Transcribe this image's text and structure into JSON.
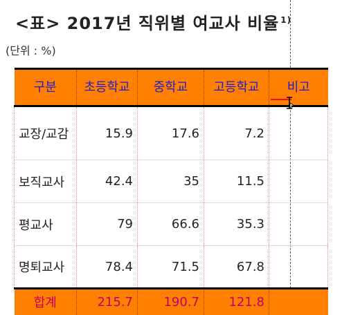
{
  "title": {
    "text": "<표> 2017년 직위별 여교사 비율",
    "footnote": "1)"
  },
  "unit": "(단위 : %)",
  "table": {
    "headers": [
      "구분",
      "초등학교",
      "중학교",
      "고등학교",
      "비고"
    ],
    "rows": [
      {
        "label": "교장/교감",
        "values": [
          "15.9",
          "17.6",
          "7.2"
        ],
        "note": ""
      },
      {
        "label": "보직교사",
        "values": [
          "42.4",
          "35",
          "11.5"
        ],
        "note": ""
      },
      {
        "label": "평교사",
        "values": [
          "79",
          "66.6",
          "35.3"
        ],
        "note": ""
      },
      {
        "label": "명퇴교사",
        "values": [
          "78.4",
          "71.5",
          "67.8"
        ],
        "note": ""
      }
    ],
    "total": {
      "label": "합계",
      "values": [
        "215.7",
        "190.7",
        "121.8"
      ],
      "note": ""
    }
  },
  "colors": {
    "header_bg": "#ff7f00",
    "header_text": "#1f1fcf",
    "total_text": "#c0006a"
  },
  "cursor": "text-cursor-icon"
}
